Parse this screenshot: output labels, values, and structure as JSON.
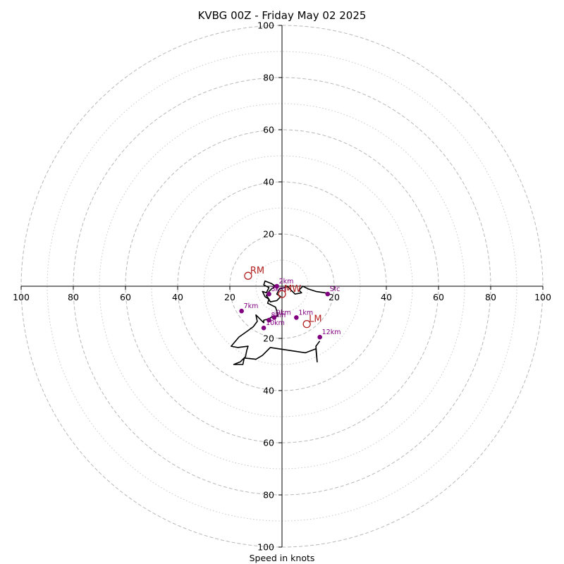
{
  "title": "KVBG 00Z - Friday May 02 2025",
  "chart_data": {
    "type": "hodograph",
    "units": "knots",
    "xlabel": "Speed in knots",
    "range": [
      -100,
      100
    ],
    "ticks_x": [
      "100",
      "80",
      "60",
      "40",
      "20",
      "20",
      "40",
      "60",
      "80",
      "100"
    ],
    "ticks_y": [
      "100",
      "80",
      "60",
      "40",
      "20",
      "20",
      "40",
      "60",
      "80",
      "100"
    ],
    "rings_major": [
      20,
      40,
      60,
      80,
      100
    ],
    "rings_minor": [
      10,
      30,
      50,
      70,
      90
    ],
    "trace": [
      [
        17.5,
        -3.0
      ],
      [
        16.5,
        -2.5
      ],
      [
        13.0,
        -2.0
      ],
      [
        10.0,
        -1.0
      ],
      [
        8.0,
        0.0
      ],
      [
        6.5,
        -1.5
      ],
      [
        7.5,
        -2.5
      ],
      [
        5.0,
        -3.0
      ],
      [
        4.0,
        -2.0
      ],
      [
        3.0,
        -1.0
      ],
      [
        2.0,
        0.0
      ],
      [
        1.0,
        -0.5
      ],
      [
        -1.0,
        -1.0
      ],
      [
        -2.0,
        -3.0
      ],
      [
        -0.5,
        -4.0
      ],
      [
        -2.0,
        -5.5
      ],
      [
        -4.5,
        -6.0
      ],
      [
        -5.0,
        -5.0
      ],
      [
        -6.0,
        -3.5
      ],
      [
        -5.0,
        -2.0
      ],
      [
        -4.0,
        -1.0
      ],
      [
        -2.5,
        0.0
      ],
      [
        -4.0,
        1.0
      ],
      [
        -6.5,
        2.0
      ],
      [
        -7.0,
        0.5
      ],
      [
        -5.0,
        -0.5
      ],
      [
        -6.0,
        -2.5
      ],
      [
        -7.5,
        -2.0
      ],
      [
        -6.5,
        -4.0
      ],
      [
        -5.0,
        -5.0
      ],
      [
        -5.5,
        -6.5
      ],
      [
        -3.5,
        -7.5
      ],
      [
        -2.5,
        -8.0
      ],
      [
        -2.0,
        -9.5
      ],
      [
        -1.5,
        -11.5
      ],
      [
        -3.5,
        -11.5
      ],
      [
        -5.0,
        -12.5
      ],
      [
        -7.0,
        -13.0
      ],
      [
        -7.0,
        -14.0
      ],
      [
        -10.0,
        -11.0
      ],
      [
        -9.5,
        -13.5
      ],
      [
        -11.0,
        -15.5
      ],
      [
        -13.0,
        -17.0
      ],
      [
        -16.5,
        -19.5
      ],
      [
        -19.5,
        -23.0
      ],
      [
        -17.0,
        -23.5
      ],
      [
        -13.0,
        -23.0
      ],
      [
        -13.5,
        -24.5
      ],
      [
        -14.0,
        -27.0
      ],
      [
        -16.0,
        -29.0
      ],
      [
        -18.5,
        -30.0
      ],
      [
        -15.0,
        -30.0
      ],
      [
        -14.5,
        -27.5
      ],
      [
        -10.0,
        -28.0
      ],
      [
        -7.5,
        -26.5
      ],
      [
        -4.5,
        -23.5
      ],
      [
        9.0,
        -25.5
      ],
      [
        13.0,
        -24.0
      ],
      [
        13.5,
        -29.0
      ],
      [
        13.0,
        -23.0
      ],
      [
        14.5,
        -21.0
      ]
    ],
    "height_markers": [
      {
        "label": "Sfc",
        "u": 17.5,
        "v": -3.0
      },
      {
        "label": "2km",
        "u": -2.0,
        "v": 0.0
      },
      {
        "label": "3km",
        "u": -5.0,
        "v": -3.0
      },
      {
        "label": "1km",
        "u": 5.5,
        "v": -12.0
      },
      {
        "label": "7km",
        "u": -15.5,
        "v": -9.5
      },
      {
        "label": "9km",
        "u": -3.0,
        "v": -12.0
      },
      {
        "label": "8km",
        "u": -5.0,
        "v": -13.0
      },
      {
        "label": "10km",
        "u": -7.0,
        "v": -16.0
      },
      {
        "label": "12km",
        "u": 14.5,
        "v": -19.5
      }
    ],
    "storm_motion": [
      {
        "label": "RM",
        "u": -13.0,
        "v": 4.0
      },
      {
        "label": "MW",
        "u": 0.0,
        "v": -3.0
      },
      {
        "label": "LM",
        "u": 9.5,
        "v": -14.5
      }
    ]
  }
}
